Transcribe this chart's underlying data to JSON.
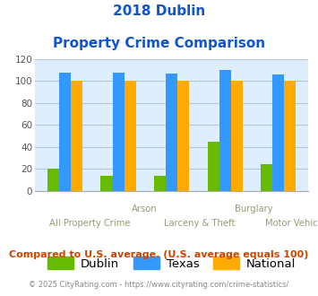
{
  "title_line1": "2018 Dublin",
  "title_line2": "Property Crime Comparison",
  "categories": [
    "All Property Crime",
    "Arson",
    "Larceny & Theft",
    "Burglary",
    "Motor Vehicle Theft"
  ],
  "category_labels_top": [
    "",
    "Arson",
    "",
    "Burglary",
    ""
  ],
  "category_labels_bottom": [
    "All Property Crime",
    "",
    "Larceny & Theft",
    "",
    "Motor Vehicle Theft"
  ],
  "dublin": [
    20,
    14,
    14,
    45,
    24
  ],
  "texas": [
    108,
    108,
    107,
    110,
    106
  ],
  "national": [
    100,
    100,
    100,
    100,
    100
  ],
  "dublin_color": "#66bb00",
  "texas_color": "#3399ff",
  "national_color": "#ffaa00",
  "ylim": [
    0,
    120
  ],
  "yticks": [
    0,
    20,
    40,
    60,
    80,
    100,
    120
  ],
  "bg_color": "#ddeeff",
  "grid_color": "#b0c4d8",
  "title_color": "#1155cc",
  "footer_text": "Compared to U.S. average. (U.S. average equals 100)",
  "footer_color": "#cc4400",
  "copyright_text": "© 2025 CityRating.com - https://www.cityrating.com/crime-statistics/",
  "copyright_color": "#888888",
  "legend_labels": [
    "Dublin",
    "Texas",
    "National"
  ],
  "xlabel_color": "#999977"
}
